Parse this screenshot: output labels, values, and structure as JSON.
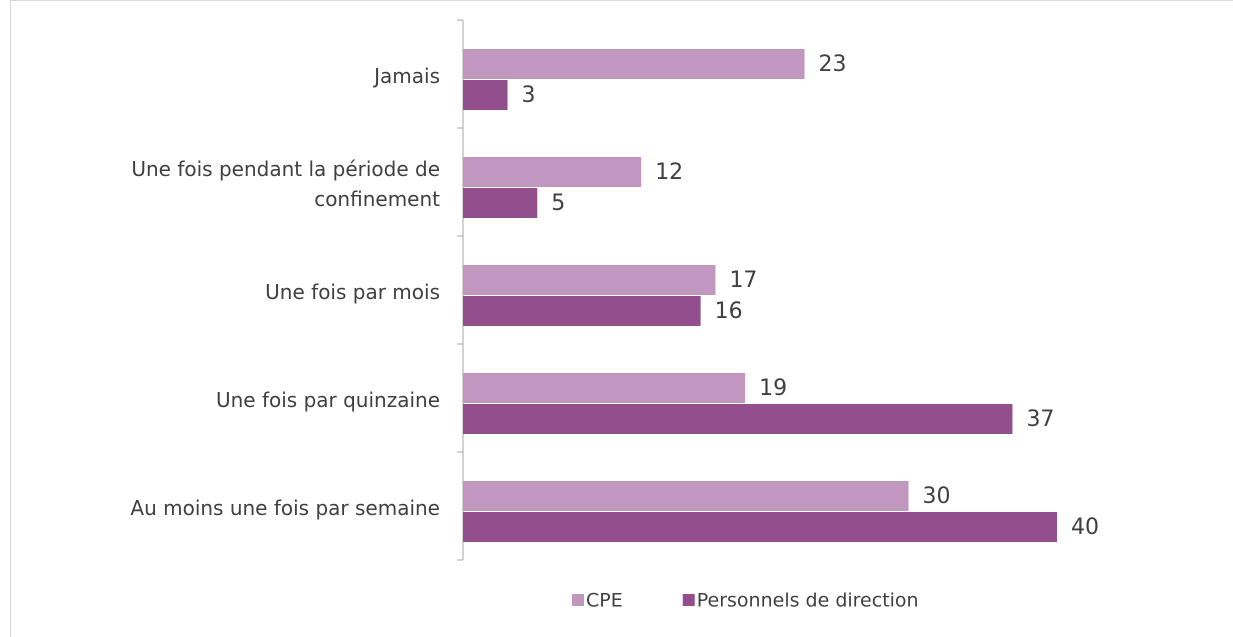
{
  "chart_data": {
    "type": "hbar",
    "categories": [
      "Jamais",
      "Une fois pendant la période de confinement",
      "Une fois par mois",
      "Une fois par quinzaine",
      "Au moins une fois par semaine"
    ],
    "series": [
      {
        "name": "CPE",
        "color": "#c197c0",
        "values": [
          23,
          12,
          17,
          19,
          30
        ]
      },
      {
        "name": "Personnels de direction",
        "color": "#934e8e",
        "values": [
          3,
          5,
          16,
          37,
          40
        ]
      }
    ],
    "legend": "bottom"
  }
}
